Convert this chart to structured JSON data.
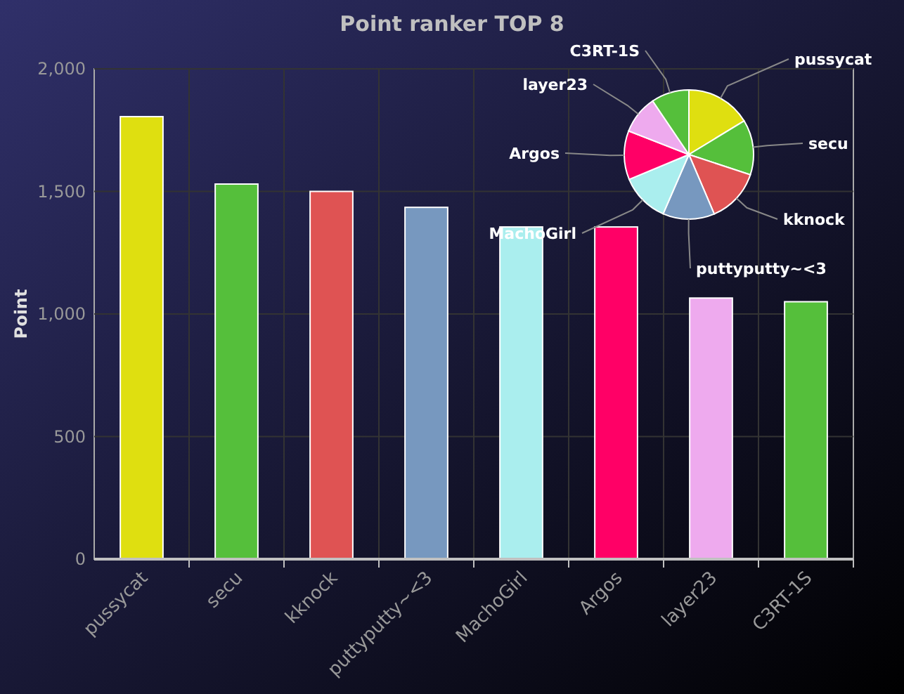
{
  "chart_data": [
    {
      "type": "bar",
      "title": "Point ranker TOP 8",
      "ylabel": "Point",
      "categories": [
        "pussycat",
        "secu",
        "kknock",
        "puttyputty~<3",
        "MachoGirl",
        "Argos",
        "layer23",
        "C3RT-1S"
      ],
      "values": [
        1805,
        1530,
        1500,
        1435,
        1355,
        1355,
        1065,
        1050
      ],
      "colors": [
        "#dfdf10",
        "#55bf3b",
        "#df5353",
        "#7798bf",
        "#aaeeee",
        "#ff0066",
        "#eeaaee",
        "#55bf3b"
      ],
      "ylim": [
        0,
        2000
      ],
      "yticks": [
        {
          "value": 0,
          "label": "0"
        },
        {
          "value": 500,
          "label": "500"
        },
        {
          "value": 1000,
          "label": "1,000"
        },
        {
          "value": 1500,
          "label": "1,500"
        },
        {
          "value": 2000,
          "label": "2,000"
        }
      ],
      "grid": true
    },
    {
      "type": "pie",
      "categories": [
        "pussycat",
        "secu",
        "kknock",
        "puttyputty~<3",
        "MachoGirl",
        "Argos",
        "layer23",
        "C3RT-1S"
      ],
      "values": [
        16.28,
        13.79,
        13.52,
        12.93,
        12.21,
        12.21,
        9.6,
        9.46
      ],
      "colors": [
        "#dfdf10",
        "#55bf3b",
        "#df5353",
        "#7798bf",
        "#aaeeee",
        "#ff0066",
        "#eeaaee",
        "#55bf3b"
      ]
    }
  ]
}
